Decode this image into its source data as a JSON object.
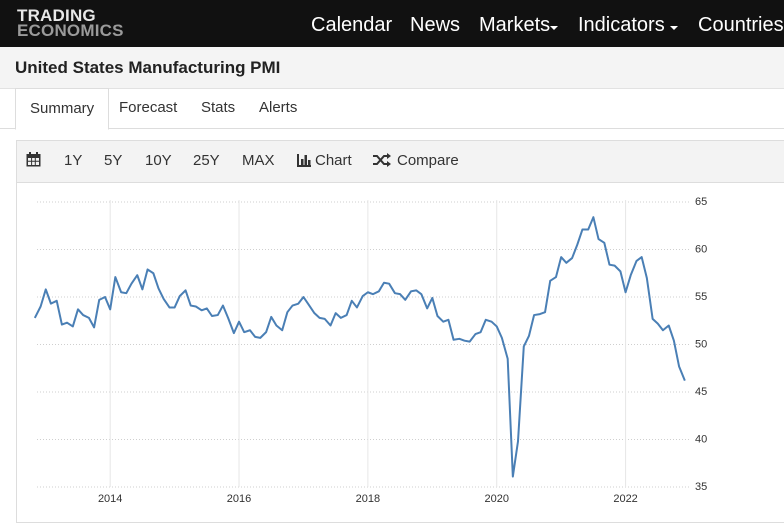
{
  "header": {
    "logo_top": "TRADING",
    "logo_bottom": "ECONOMICS",
    "nav": [
      "Calendar",
      "News",
      "Markets",
      "Indicators",
      "Countries"
    ]
  },
  "title": "United States Manufacturing PMI",
  "tabs": [
    "Summary",
    "Forecast",
    "Stats",
    "Alerts"
  ],
  "toolbar": {
    "ranges": [
      "1Y",
      "5Y",
      "10Y",
      "25Y",
      "MAX"
    ],
    "chart": "Chart",
    "compare": "Compare"
  },
  "chart_data": {
    "type": "line",
    "color": "#4a7fb5",
    "x": [
      2012.83,
      2012.92,
      2013.0,
      2013.08,
      2013.17,
      2013.25,
      2013.33,
      2013.42,
      2013.5,
      2013.58,
      2013.67,
      2013.75,
      2013.83,
      2013.92,
      2014.0,
      2014.08,
      2014.17,
      2014.25,
      2014.33,
      2014.42,
      2014.5,
      2014.58,
      2014.67,
      2014.75,
      2014.83,
      2014.92,
      2015.0,
      2015.08,
      2015.17,
      2015.25,
      2015.33,
      2015.42,
      2015.5,
      2015.58,
      2015.67,
      2015.75,
      2015.83,
      2015.92,
      2016.0,
      2016.08,
      2016.17,
      2016.25,
      2016.33,
      2016.42,
      2016.5,
      2016.58,
      2016.67,
      2016.75,
      2016.83,
      2016.92,
      2017.0,
      2017.08,
      2017.17,
      2017.25,
      2017.33,
      2017.42,
      2017.5,
      2017.58,
      2017.67,
      2017.75,
      2017.83,
      2017.92,
      2018.0,
      2018.08,
      2018.17,
      2018.25,
      2018.33,
      2018.42,
      2018.5,
      2018.58,
      2018.67,
      2018.75,
      2018.83,
      2018.92,
      2019.0,
      2019.08,
      2019.17,
      2019.25,
      2019.33,
      2019.42,
      2019.5,
      2019.58,
      2019.67,
      2019.75,
      2019.83,
      2019.92,
      2020.0,
      2020.08,
      2020.17,
      2020.25,
      2020.33,
      2020.42,
      2020.5,
      2020.58,
      2020.67,
      2020.75,
      2020.83,
      2020.92,
      2021.0,
      2021.08,
      2021.17,
      2021.25,
      2021.33,
      2021.42,
      2021.5,
      2021.58,
      2021.67,
      2021.75,
      2021.83,
      2021.92,
      2022.0,
      2022.08,
      2022.17,
      2022.25,
      2022.33,
      2022.42,
      2022.5,
      2022.58,
      2022.67,
      2022.75,
      2022.83,
      2022.92
    ],
    "values": [
      52.8,
      54.0,
      55.8,
      54.3,
      54.6,
      52.1,
      52.3,
      51.9,
      53.7,
      53.1,
      52.8,
      51.8,
      54.7,
      55.0,
      53.7,
      57.1,
      55.5,
      55.4,
      56.4,
      57.3,
      55.8,
      57.9,
      57.5,
      55.9,
      54.8,
      53.9,
      53.9,
      55.1,
      55.7,
      54.1,
      54.0,
      53.6,
      53.8,
      53.0,
      53.1,
      54.1,
      52.8,
      51.2,
      52.4,
      51.3,
      51.5,
      50.8,
      50.7,
      51.3,
      52.9,
      52.0,
      51.5,
      53.4,
      54.1,
      54.3,
      55.0,
      54.2,
      53.3,
      52.8,
      52.7,
      52.0,
      53.3,
      52.8,
      53.1,
      54.6,
      53.9,
      55.1,
      55.5,
      55.3,
      55.6,
      56.5,
      56.4,
      55.4,
      55.3,
      54.7,
      55.6,
      55.7,
      55.3,
      53.8,
      54.9,
      53.0,
      52.4,
      52.6,
      50.5,
      50.6,
      50.4,
      50.3,
      51.1,
      51.3,
      52.6,
      52.4,
      51.9,
      50.7,
      48.5,
      36.1,
      39.8,
      49.8,
      50.9,
      53.1,
      53.2,
      53.4,
      56.7,
      57.1,
      59.2,
      58.6,
      59.1,
      60.5,
      62.1,
      62.1,
      63.4,
      61.1,
      60.7,
      58.4,
      58.3,
      57.7,
      55.5,
      57.3,
      58.8,
      59.2,
      57.0,
      52.7,
      52.2,
      51.5,
      52.0,
      50.4,
      47.7,
      46.2
    ],
    "xlim": [
      2012.6,
      2023.0
    ],
    "xticks": [
      2014,
      2016,
      2018,
      2020,
      2022
    ],
    "ylim": [
      35,
      65
    ],
    "yticks": [
      35,
      40,
      45,
      50,
      55,
      60,
      65
    ],
    "grid": true
  }
}
